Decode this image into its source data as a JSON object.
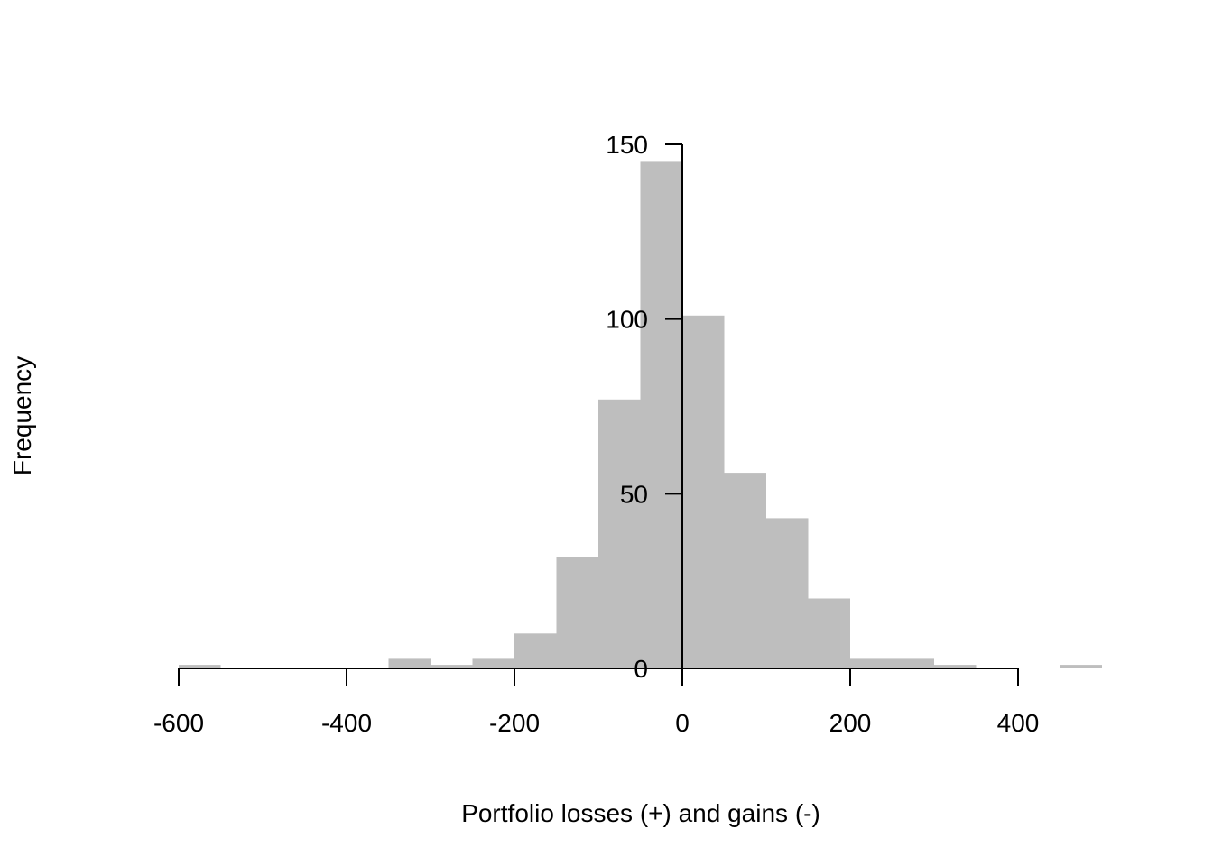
{
  "chart_data": {
    "type": "bar",
    "title": "",
    "xlabel": "Portfolio losses (+) and gains (-)",
    "ylabel": "Frequency",
    "bar_color": "#bebebe",
    "bins": [
      {
        "from": -600,
        "to": -550,
        "count": 1
      },
      {
        "from": -550,
        "to": -500,
        "count": 0
      },
      {
        "from": -500,
        "to": -450,
        "count": 0
      },
      {
        "from": -450,
        "to": -400,
        "count": 0
      },
      {
        "from": -400,
        "to": -350,
        "count": 0
      },
      {
        "from": -350,
        "to": -300,
        "count": 3
      },
      {
        "from": -300,
        "to": -250,
        "count": 1
      },
      {
        "from": -250,
        "to": -200,
        "count": 3
      },
      {
        "from": -200,
        "to": -150,
        "count": 10
      },
      {
        "from": -150,
        "to": -100,
        "count": 32
      },
      {
        "from": -100,
        "to": -50,
        "count": 77
      },
      {
        "from": -50,
        "to": 0,
        "count": 145
      },
      {
        "from": 0,
        "to": 50,
        "count": 101
      },
      {
        "from": 50,
        "to": 100,
        "count": 56
      },
      {
        "from": 100,
        "to": 150,
        "count": 43
      },
      {
        "from": 150,
        "to": 200,
        "count": 20
      },
      {
        "from": 200,
        "to": 250,
        "count": 3
      },
      {
        "from": 250,
        "to": 300,
        "count": 3
      },
      {
        "from": 300,
        "to": 350,
        "count": 1
      },
      {
        "from": 350,
        "to": 400,
        "count": 0
      },
      {
        "from": 400,
        "to": 450,
        "count": 0
      },
      {
        "from": 450,
        "to": 500,
        "count": 1
      }
    ],
    "xlim": [
      -600,
      500
    ],
    "ylim": [
      0,
      150
    ],
    "x_ticks": [
      {
        "value": -600,
        "label": "-600"
      },
      {
        "value": -400,
        "label": "-400"
      },
      {
        "value": -200,
        "label": "-200"
      },
      {
        "value": 0,
        "label": "0"
      },
      {
        "value": 200,
        "label": "200"
      },
      {
        "value": 400,
        "label": "400"
      }
    ],
    "y_ticks": [
      {
        "value": 0,
        "label": "0"
      },
      {
        "value": 50,
        "label": "50"
      },
      {
        "value": 100,
        "label": "100"
      },
      {
        "value": 150,
        "label": "150"
      }
    ],
    "y_axis_at_x": 0,
    "grid": false
  }
}
